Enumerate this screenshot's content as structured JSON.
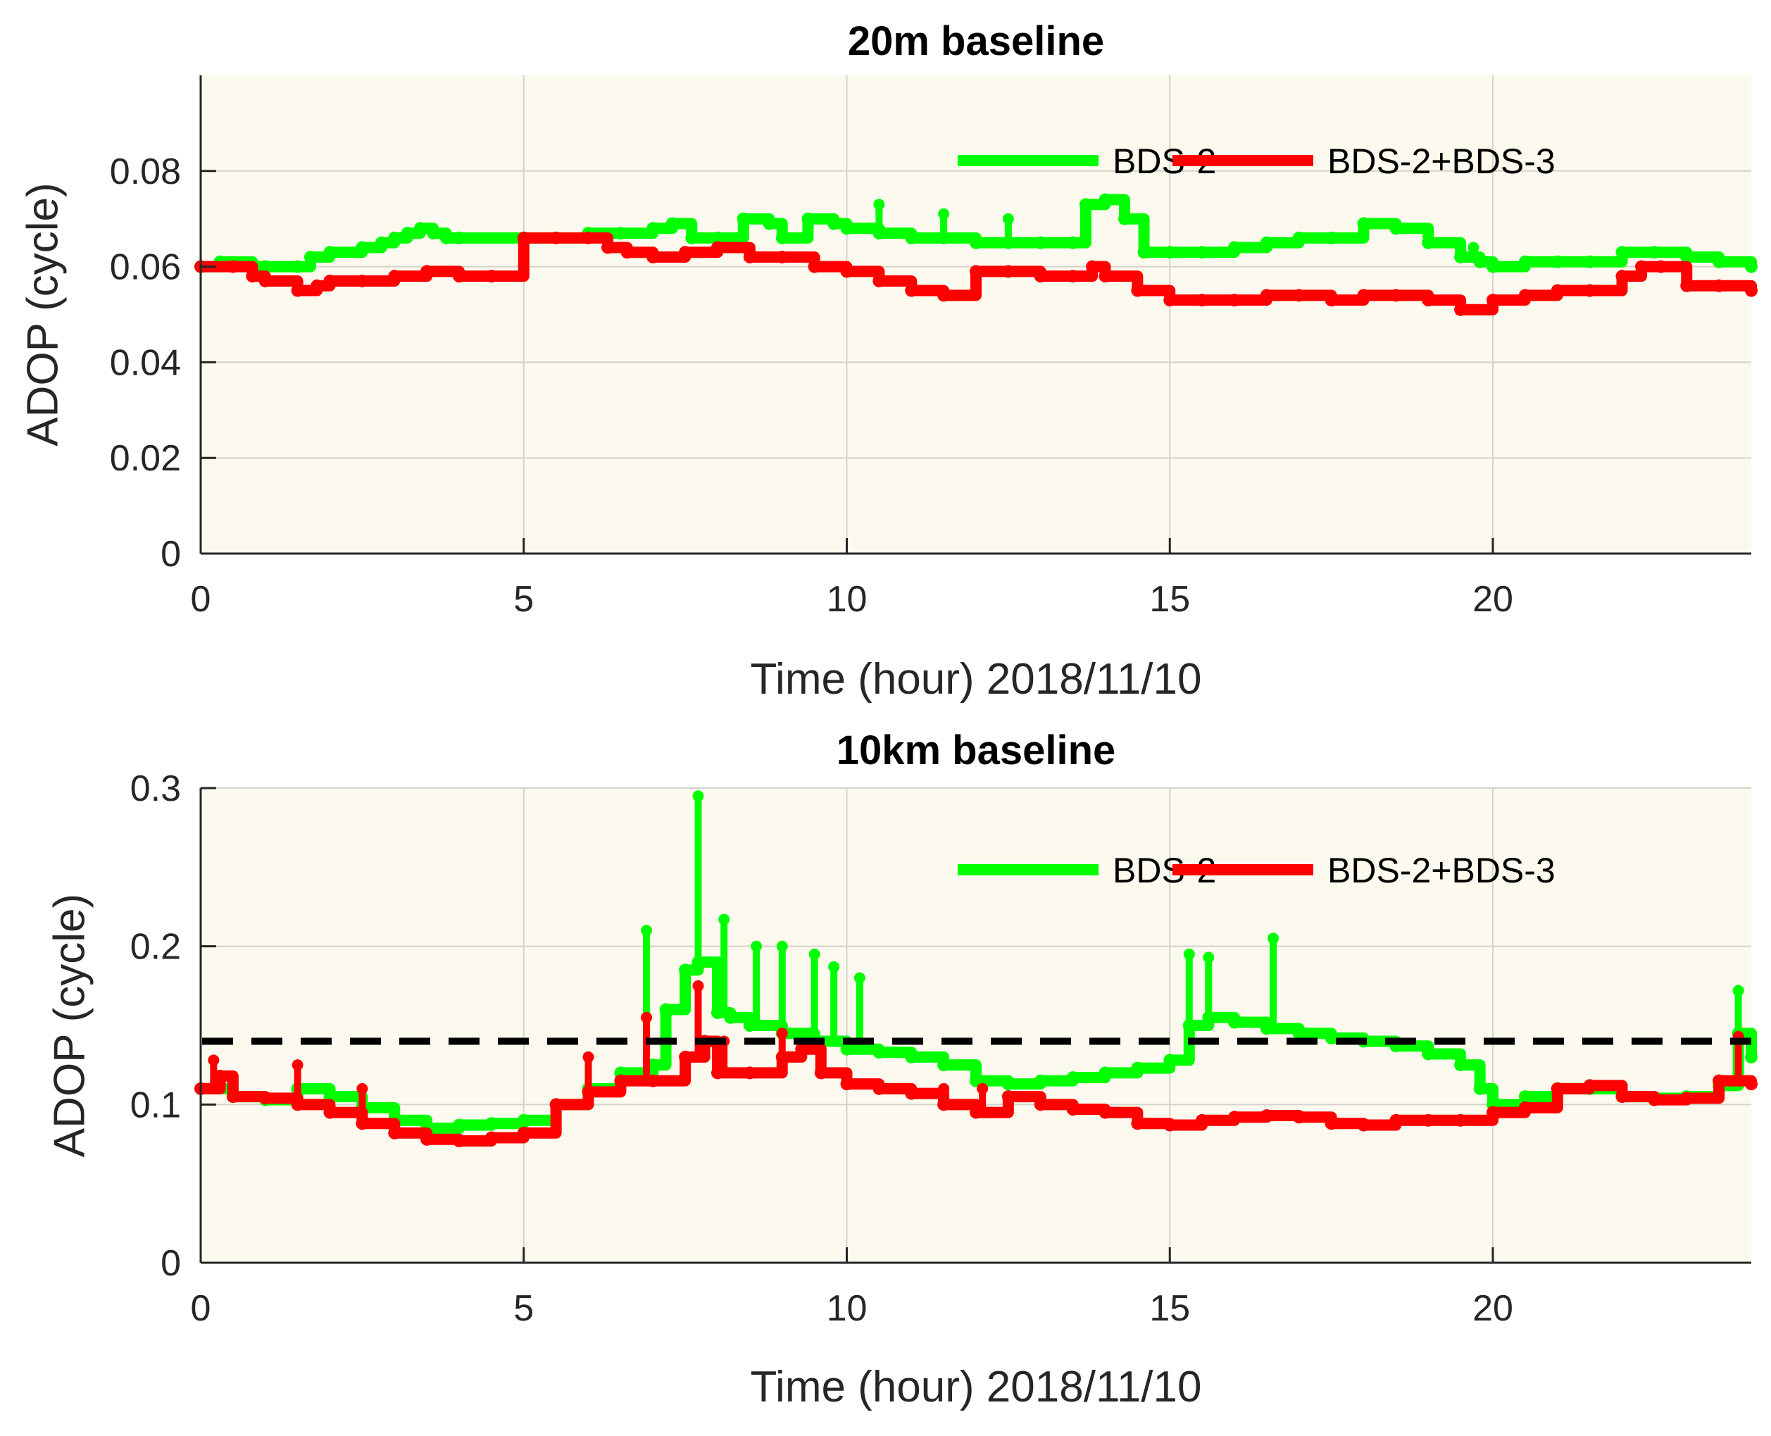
{
  "chart_data": [
    {
      "type": "line",
      "title": "20m baseline",
      "xlabel": "Time (hour) 2018/11/10",
      "ylabel": "ADOP (cycle)",
      "xlim": [
        0,
        24
      ],
      "ylim": [
        0,
        0.1
      ],
      "xticks": [
        0,
        5,
        10,
        15,
        20
      ],
      "xtick_labels": [
        "0",
        "5",
        "10",
        "15",
        "20"
      ],
      "yticks": [
        0,
        0.02,
        0.04,
        0.06,
        0.08
      ],
      "ytick_labels": [
        "0",
        "0.02",
        "0.04",
        "0.06",
        "0.08"
      ],
      "grid": true,
      "legend_position": "top-right",
      "series": [
        {
          "name": "BDS-2",
          "color": "#00ff00",
          "x": [
            0,
            0.3,
            0.8,
            1.0,
            1.5,
            1.7,
            2.0,
            2.5,
            2.8,
            3.0,
            3.2,
            3.4,
            3.6,
            3.8,
            4.0,
            5.0,
            6.0,
            6.5,
            7.0,
            7.3,
            7.6,
            8.0,
            8.4,
            8.8,
            9.0,
            9.4,
            9.8,
            10.0,
            10.5,
            11.0,
            11.5,
            12.0,
            12.5,
            13.0,
            13.5,
            13.7,
            14.0,
            14.3,
            14.6,
            15.0,
            15.5,
            16.0,
            16.5,
            17.0,
            17.5,
            18.0,
            18.5,
            19.0,
            19.5,
            19.8,
            20.0,
            20.5,
            21.0,
            21.5,
            22.0,
            22.5,
            23.0,
            23.5,
            24.0
          ],
          "y": [
            0.06,
            0.061,
            0.06,
            0.06,
            0.06,
            0.062,
            0.063,
            0.064,
            0.065,
            0.066,
            0.067,
            0.068,
            0.067,
            0.066,
            0.066,
            0.066,
            0.067,
            0.067,
            0.068,
            0.069,
            0.066,
            0.066,
            0.07,
            0.069,
            0.066,
            0.07,
            0.069,
            0.068,
            0.067,
            0.066,
            0.066,
            0.065,
            0.065,
            0.065,
            0.065,
            0.073,
            0.074,
            0.07,
            0.063,
            0.063,
            0.063,
            0.064,
            0.065,
            0.066,
            0.066,
            0.069,
            0.068,
            0.065,
            0.062,
            0.061,
            0.06,
            0.061,
            0.061,
            0.061,
            0.063,
            0.063,
            0.062,
            0.061,
            0.06
          ],
          "spikes": [
            [
              10.5,
              0.073
            ],
            [
              11.5,
              0.071
            ],
            [
              12.5,
              0.07
            ],
            [
              19.7,
              0.064
            ]
          ]
        },
        {
          "name": "BDS-2+BDS-3",
          "color": "#ff0000",
          "x": [
            0,
            0.5,
            0.8,
            1.0,
            1.5,
            1.8,
            2.0,
            2.5,
            3.0,
            3.5,
            4.0,
            4.5,
            5.0,
            5.5,
            6.0,
            6.3,
            6.6,
            7.0,
            7.5,
            8.0,
            8.5,
            9.0,
            9.5,
            10.0,
            10.5,
            11.0,
            11.5,
            12.0,
            12.5,
            13.0,
            13.5,
            13.8,
            14.0,
            14.5,
            15.0,
            15.5,
            16.0,
            16.5,
            17.0,
            17.5,
            18.0,
            18.5,
            19.0,
            19.5,
            20.0,
            20.5,
            21.0,
            21.5,
            22.0,
            22.3,
            22.6,
            23.0,
            23.5,
            24.0
          ],
          "y": [
            0.06,
            0.06,
            0.058,
            0.057,
            0.055,
            0.056,
            0.057,
            0.057,
            0.058,
            0.059,
            0.058,
            0.058,
            0.066,
            0.066,
            0.066,
            0.064,
            0.063,
            0.062,
            0.063,
            0.064,
            0.062,
            0.062,
            0.06,
            0.059,
            0.057,
            0.055,
            0.054,
            0.059,
            0.059,
            0.058,
            0.058,
            0.06,
            0.058,
            0.055,
            0.053,
            0.053,
            0.053,
            0.054,
            0.054,
            0.053,
            0.054,
            0.054,
            0.053,
            0.051,
            0.053,
            0.054,
            0.055,
            0.055,
            0.058,
            0.06,
            0.06,
            0.056,
            0.056,
            0.055
          ]
        }
      ]
    },
    {
      "type": "line",
      "title": "10km baseline",
      "xlabel": "Time (hour) 2018/11/10",
      "ylabel": "ADOP (cycle)",
      "xlim": [
        0,
        24
      ],
      "ylim": [
        0,
        0.3
      ],
      "xticks": [
        0,
        5,
        10,
        15,
        20
      ],
      "xtick_labels": [
        "0",
        "5",
        "10",
        "15",
        "20"
      ],
      "yticks": [
        0,
        0.1,
        0.2,
        0.3
      ],
      "ytick_labels": [
        "0",
        "0.1",
        "0.2",
        "0.3"
      ],
      "grid": true,
      "legend_position": "top-right",
      "reference_line": {
        "y": 0.14,
        "style": "dashed",
        "color": "#000000"
      },
      "series": [
        {
          "name": "BDS-2",
          "color": "#00ff00",
          "x": [
            0,
            0.5,
            1.0,
            1.5,
            2.0,
            2.5,
            3.0,
            3.5,
            4.0,
            4.5,
            5.0,
            5.5,
            6.0,
            6.5,
            7.0,
            7.2,
            7.5,
            7.7,
            8.0,
            8.2,
            8.5,
            9.0,
            9.5,
            10.0,
            10.5,
            11.0,
            11.5,
            12.0,
            12.5,
            13.0,
            13.5,
            14.0,
            14.5,
            15.0,
            15.3,
            15.6,
            16.0,
            16.5,
            17.0,
            17.5,
            18.0,
            18.5,
            19.0,
            19.5,
            19.8,
            20.0,
            20.5,
            21.0,
            21.5,
            22.0,
            22.5,
            23.0,
            23.5,
            23.8,
            24.0
          ],
          "y": [
            0.11,
            0.105,
            0.103,
            0.11,
            0.105,
            0.098,
            0.09,
            0.085,
            0.087,
            0.088,
            0.09,
            0.1,
            0.11,
            0.12,
            0.125,
            0.16,
            0.185,
            0.19,
            0.158,
            0.155,
            0.15,
            0.145,
            0.14,
            0.135,
            0.133,
            0.13,
            0.125,
            0.115,
            0.113,
            0.115,
            0.117,
            0.12,
            0.123,
            0.128,
            0.15,
            0.155,
            0.152,
            0.148,
            0.145,
            0.142,
            0.14,
            0.137,
            0.132,
            0.125,
            0.11,
            0.1,
            0.105,
            0.11,
            0.11,
            0.105,
            0.104,
            0.105,
            0.112,
            0.145,
            0.13
          ],
          "spikes": [
            [
              6.9,
              0.21
            ],
            [
              7.7,
              0.295
            ],
            [
              8.1,
              0.217
            ],
            [
              8.6,
              0.2
            ],
            [
              9.0,
              0.2
            ],
            [
              9.5,
              0.195
            ],
            [
              9.8,
              0.187
            ],
            [
              10.2,
              0.18
            ],
            [
              15.3,
              0.195
            ],
            [
              15.6,
              0.193
            ],
            [
              16.6,
              0.205
            ],
            [
              23.8,
              0.172
            ]
          ]
        },
        {
          "name": "BDS-2+BDS-3",
          "color": "#ff0000",
          "x": [
            0,
            0.3,
            0.5,
            1.0,
            1.5,
            2.0,
            2.5,
            3.0,
            3.5,
            4.0,
            4.5,
            5.0,
            5.5,
            6.0,
            6.5,
            7.0,
            7.5,
            7.8,
            8.0,
            8.5,
            9.0,
            9.3,
            9.6,
            10.0,
            10.5,
            11.0,
            11.5,
            12.0,
            12.5,
            13.0,
            13.5,
            14.0,
            14.5,
            15.0,
            15.5,
            16.0,
            16.5,
            17.0,
            17.5,
            18.0,
            18.5,
            19.0,
            19.5,
            20.0,
            20.5,
            21.0,
            21.5,
            22.0,
            22.5,
            23.0,
            23.5,
            24.0
          ],
          "y": [
            0.11,
            0.118,
            0.105,
            0.104,
            0.1,
            0.095,
            0.088,
            0.082,
            0.078,
            0.077,
            0.079,
            0.082,
            0.1,
            0.108,
            0.115,
            0.115,
            0.13,
            0.14,
            0.12,
            0.12,
            0.13,
            0.135,
            0.12,
            0.113,
            0.11,
            0.107,
            0.1,
            0.095,
            0.105,
            0.1,
            0.097,
            0.095,
            0.088,
            0.087,
            0.09,
            0.092,
            0.093,
            0.092,
            0.088,
            0.087,
            0.09,
            0.09,
            0.09,
            0.095,
            0.098,
            0.11,
            0.112,
            0.105,
            0.103,
            0.104,
            0.115,
            0.113
          ],
          "spikes": [
            [
              0.2,
              0.128
            ],
            [
              1.5,
              0.125
            ],
            [
              2.5,
              0.11
            ],
            [
              6.0,
              0.13
            ],
            [
              6.9,
              0.155
            ],
            [
              7.7,
              0.175
            ],
            [
              8.1,
              0.14
            ],
            [
              9.0,
              0.145
            ],
            [
              11.5,
              0.11
            ],
            [
              12.1,
              0.11
            ],
            [
              23.8,
              0.143
            ]
          ]
        }
      ]
    }
  ]
}
